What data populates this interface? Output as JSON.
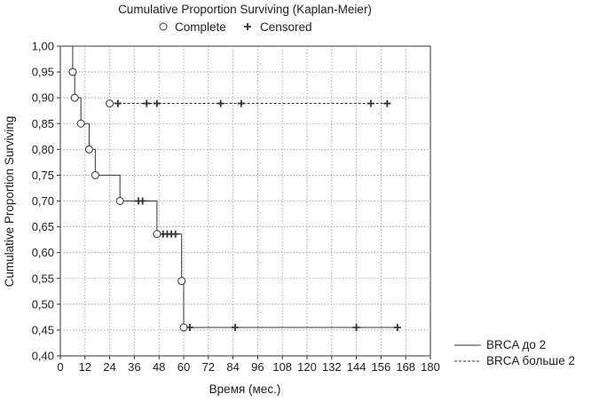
{
  "chart_data": {
    "type": "line",
    "title": "Cumulative Proportion Surviving (Kaplan-Meier)",
    "marker_legend": {
      "complete": "Complete",
      "censored": "Censored"
    },
    "xlabel": "Время (мес.)",
    "ylabel": "Cumulative Proportion Surviving",
    "xlim": [
      0,
      180
    ],
    "ylim": [
      0.4,
      1.0
    ],
    "xticks": [
      0,
      12,
      24,
      36,
      48,
      60,
      72,
      84,
      96,
      108,
      120,
      132,
      144,
      156,
      168,
      180
    ],
    "xtick_labels": [
      "0",
      "12",
      "24",
      "36",
      "48",
      "60",
      "72",
      "84",
      "96",
      "108",
      "120",
      "132",
      "144",
      "156",
      "168",
      "180"
    ],
    "yticks": [
      0.4,
      0.45,
      0.5,
      0.55,
      0.6,
      0.65,
      0.7,
      0.75,
      0.8,
      0.85,
      0.9,
      0.95,
      1.0
    ],
    "ytick_labels": [
      "0,40",
      "0,45",
      "0,50",
      "0,55",
      "0,60",
      "0,65",
      "0,70",
      "0,75",
      "0,80",
      "0,85",
      "0,90",
      "0,95",
      "1,00"
    ],
    "grid": true,
    "legend_position": "bottom-right outside",
    "series": [
      {
        "name": "BRCA до 2",
        "line_style": "solid",
        "steps": [
          [
            6,
            1.0
          ],
          [
            6,
            0.95
          ],
          [
            7,
            0.95
          ],
          [
            7,
            0.9
          ],
          [
            10,
            0.9
          ],
          [
            10,
            0.85
          ],
          [
            14,
            0.85
          ],
          [
            14,
            0.8
          ],
          [
            17,
            0.8
          ],
          [
            17,
            0.75
          ],
          [
            29,
            0.75
          ],
          [
            29,
            0.7
          ],
          [
            47,
            0.7
          ],
          [
            47,
            0.636
          ],
          [
            59,
            0.636
          ],
          [
            59,
            0.545
          ],
          [
            60,
            0.545
          ],
          [
            60,
            0.455
          ],
          [
            164,
            0.455
          ]
        ],
        "complete": [
          [
            6,
            0.95
          ],
          [
            7,
            0.9
          ],
          [
            10,
            0.85
          ],
          [
            14,
            0.8
          ],
          [
            17,
            0.75
          ],
          [
            29,
            0.7
          ],
          [
            47,
            0.636
          ],
          [
            59,
            0.545
          ],
          [
            60,
            0.455
          ]
        ],
        "censored": [
          [
            38,
            0.7
          ],
          [
            40,
            0.7
          ],
          [
            50,
            0.636
          ],
          [
            52,
            0.636
          ],
          [
            54,
            0.636
          ],
          [
            56,
            0.636
          ],
          [
            63,
            0.455
          ],
          [
            85,
            0.455
          ],
          [
            144,
            0.455
          ],
          [
            164,
            0.455
          ]
        ]
      },
      {
        "name": "BRCA больше 2",
        "line_style": "dashed",
        "steps": [
          [
            24,
            0.889
          ],
          [
            159,
            0.889
          ]
        ],
        "complete": [
          [
            24,
            0.889
          ]
        ],
        "censored": [
          [
            28,
            0.889
          ],
          [
            42,
            0.889
          ],
          [
            47,
            0.889
          ],
          [
            78,
            0.889
          ],
          [
            88,
            0.889
          ],
          [
            151,
            0.889
          ],
          [
            159,
            0.889
          ]
        ]
      }
    ],
    "colors": {
      "line": "#333333",
      "grid": "#9a9a9a",
      "marker_fill": "#ffffff"
    }
  }
}
